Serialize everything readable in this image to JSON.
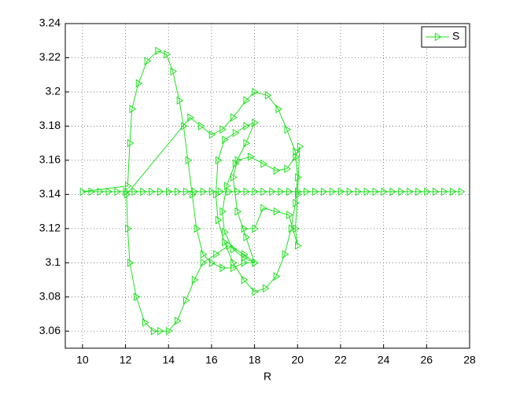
{
  "chart_data": {
    "type": "line",
    "xlabel": "R",
    "xlim": [
      9.2,
      28
    ],
    "xticks": [
      10,
      12,
      14,
      16,
      18,
      20,
      22,
      24,
      26,
      28
    ],
    "ylim": [
      3.05,
      3.24
    ],
    "yticks": [
      3.06,
      3.08,
      3.1,
      3.12,
      3.14,
      3.16,
      3.18,
      3.2,
      3.22,
      3.24
    ],
    "grid": true,
    "legend": "top-right",
    "series": [
      {
        "name": "S",
        "color": "#22e022",
        "marker": "triangle-right",
        "x": [
          27.6,
          27.2,
          26.8,
          26.4,
          26,
          25.6,
          25.2,
          24.8,
          24.4,
          24,
          23.6,
          23.2,
          22.8,
          22.4,
          22,
          21.6,
          21.2,
          20.8,
          20.4,
          20,
          19.6,
          19.2,
          18.8,
          18.4,
          18,
          17.6,
          17.2,
          16.8,
          16.4,
          16,
          15.6,
          15.2,
          14.8,
          14.4,
          14,
          13.6,
          13.2,
          12.8,
          12.4,
          12,
          11.6,
          11.2,
          10.8,
          10.4,
          10,
          12.1,
          12.2,
          12.3,
          12.6,
          13,
          13.5,
          13.9,
          14.2,
          14.5,
          14.7,
          14.9,
          15.1,
          15.3,
          15.6,
          16,
          16.5,
          17,
          17.5,
          18,
          17.5,
          16.8,
          16.2,
          15.6,
          15.2,
          14.8,
          14.4,
          14,
          13.6,
          13.3,
          12.9,
          12.5,
          12.2,
          12.1,
          12.05,
          15,
          15.5,
          16,
          16.5,
          17,
          17.6,
          18,
          18.6,
          19.1,
          19.5,
          19.9,
          20,
          19.9,
          19.7,
          19.4,
          19,
          18.5,
          18,
          17.5,
          17,
          16.6,
          16.3,
          16.2,
          16.3,
          16.6,
          17.1,
          17.6,
          18,
          17.6,
          17.1,
          16.7,
          16.5,
          16.6,
          17,
          17.5,
          18,
          17.6,
          17.2,
          17,
          17.2,
          17.8,
          18.4,
          19,
          19.5,
          19.9,
          20.1,
          20,
          19.9,
          20,
          19.6,
          19,
          18.4,
          18,
          17.5
        ],
        "values": [
          3.1416,
          3.1416,
          3.1416,
          3.1416,
          3.1416,
          3.1416,
          3.1416,
          3.1416,
          3.1416,
          3.1416,
          3.1416,
          3.1416,
          3.1416,
          3.1416,
          3.1416,
          3.1416,
          3.1416,
          3.1416,
          3.1416,
          3.1416,
          3.1416,
          3.1416,
          3.1416,
          3.1416,
          3.1416,
          3.1416,
          3.1416,
          3.1416,
          3.1416,
          3.1416,
          3.1416,
          3.1416,
          3.1416,
          3.1416,
          3.1416,
          3.1416,
          3.1416,
          3.1416,
          3.1416,
          3.1416,
          3.1416,
          3.1416,
          3.1416,
          3.1416,
          3.1416,
          3.145,
          3.17,
          3.19,
          3.205,
          3.218,
          3.224,
          3.222,
          3.212,
          3.195,
          3.18,
          3.16,
          3.14,
          3.12,
          3.105,
          3.1,
          3.097,
          3.097,
          3.1,
          3.1,
          3.105,
          3.11,
          3.105,
          3.1,
          3.09,
          3.078,
          3.066,
          3.06,
          3.06,
          3.06,
          3.065,
          3.08,
          3.1,
          3.12,
          3.14,
          3.185,
          3.18,
          3.175,
          3.178,
          3.185,
          3.195,
          3.2,
          3.198,
          3.19,
          3.178,
          3.165,
          3.15,
          3.135,
          3.12,
          3.105,
          3.092,
          3.085,
          3.083,
          3.09,
          3.1,
          3.112,
          3.125,
          3.14,
          3.16,
          3.172,
          3.176,
          3.18,
          3.182,
          3.17,
          3.158,
          3.145,
          3.13,
          3.118,
          3.108,
          3.103,
          3.1,
          3.115,
          3.13,
          3.15,
          3.16,
          3.162,
          3.158,
          3.154,
          3.155,
          3.162,
          3.168,
          3.14,
          3.12,
          3.11,
          3.128,
          3.13,
          3.132,
          3.12,
          3.12
        ]
      }
    ]
  }
}
